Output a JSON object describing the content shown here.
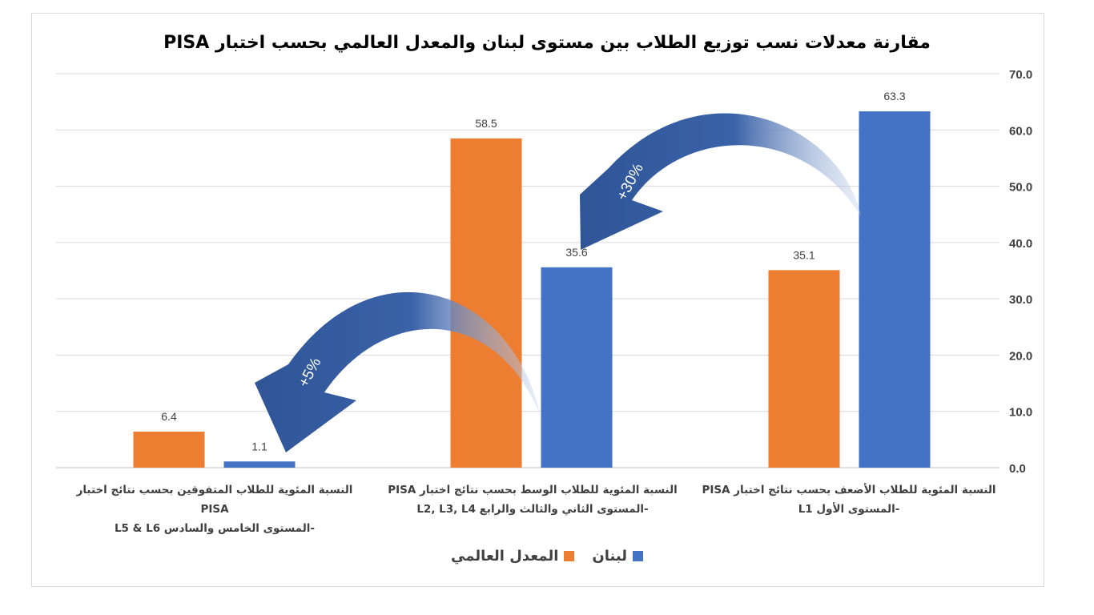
{
  "chart_data": {
    "type": "bar",
    "title": "مقارنة معدلات نسب توزيع الطلاب بين مستوى لبنان والمعدل العالمي بحسب اختبار PISA",
    "categories": [
      {
        "line1": "النسبة المئوية للطلاب الأضعف بحسب نتائج اختبار PISA",
        "line2": "-المستوى الأول L1"
      },
      {
        "line1": "النسبة المئوية للطلاب الوسط  بحسب نتائج اختبار PISA",
        "line2": "-المستوى الثاني والثالث والرابع L2, L3, L4"
      },
      {
        "line1": "النسبة المئوية للطلاب المتفوقين بحسب نتائج اختبار PISA",
        "line2": "-المستوى الخامس والسادس L5 & L6"
      }
    ],
    "series": [
      {
        "name": "المعدل العالمي",
        "color": "#ED7D31",
        "values": [
          35.1,
          58.5,
          6.4
        ]
      },
      {
        "name": "لبنان",
        "color": "#4472C4",
        "values": [
          63.3,
          35.6,
          1.1
        ]
      }
    ],
    "value_labels": [
      "35.1",
      "58.5",
      "6.4",
      "63.3",
      "35.6",
      "1.1"
    ],
    "y_ticks": [
      "0.0",
      "10.0",
      "20.0",
      "30.0",
      "40.0",
      "50.0",
      "60.0",
      "70.0"
    ],
    "ylim": [
      0,
      70
    ],
    "y_axis_side": "right",
    "grid": true,
    "legend_position": "bottom",
    "annotations": [
      {
        "text": "+30%",
        "color": "#2F5597"
      },
      {
        "text": "+5%",
        "color": "#2F5597"
      }
    ]
  }
}
